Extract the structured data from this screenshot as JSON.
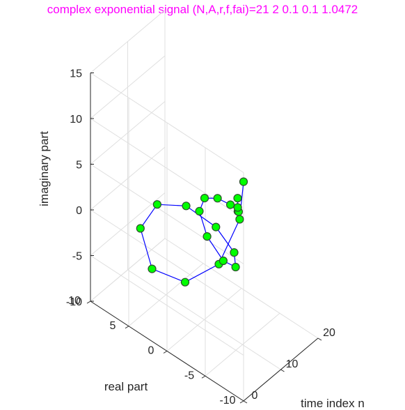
{
  "colors": {
    "title": "#ff00ff",
    "line": "#0000ff",
    "marker_fill": "#00ff00",
    "marker_edge": "#2d4f2d",
    "axis": "#262626",
    "grid": "#dfdfdf"
  },
  "chart_data": {
    "type": "line3d",
    "title": "complex exponential signal (N,A,r,f,fai)=21 2 0.1 0.1 1.0472",
    "xlabel": "time index n",
    "ylabel": "real part",
    "zlabel": "imaginary part",
    "xlim": [
      0,
      20
    ],
    "ylim": [
      -10,
      10
    ],
    "zlim": [
      -10,
      15
    ],
    "x_ticks": [
      "0",
      "10",
      "20"
    ],
    "y_ticks": [
      "-10",
      "-5",
      "0",
      "5",
      "10"
    ],
    "z_ticks": [
      "-10",
      "-5",
      "0",
      "5",
      "10",
      "15"
    ],
    "grid": true,
    "series": [
      {
        "n": [
          0,
          1,
          2,
          3,
          4,
          5,
          6,
          7,
          8,
          9,
          10,
          11,
          12,
          13,
          14,
          15,
          16,
          17,
          18,
          19,
          20
        ],
        "real": [
          -10.0,
          -9.0,
          -5.8,
          -0.9,
          3.9,
          5.9,
          4.2,
          0.9,
          -2.5,
          -4.4,
          -4.1,
          -2.0,
          0.6,
          2.1,
          1.9,
          0.7,
          -0.5,
          -1.0,
          -0.6,
          0.0,
          0.5
        ],
        "imag": [
          14.0,
          9.0,
          2.0,
          -3.0,
          -4.5,
          -1.5,
          1.7,
          3.0,
          2.2,
          0.1,
          -2.0,
          -2.8,
          -1.9,
          -0.3,
          0.9,
          1.2,
          0.8,
          0.0,
          -0.6,
          -0.8,
          -0.4
        ]
      }
    ]
  }
}
